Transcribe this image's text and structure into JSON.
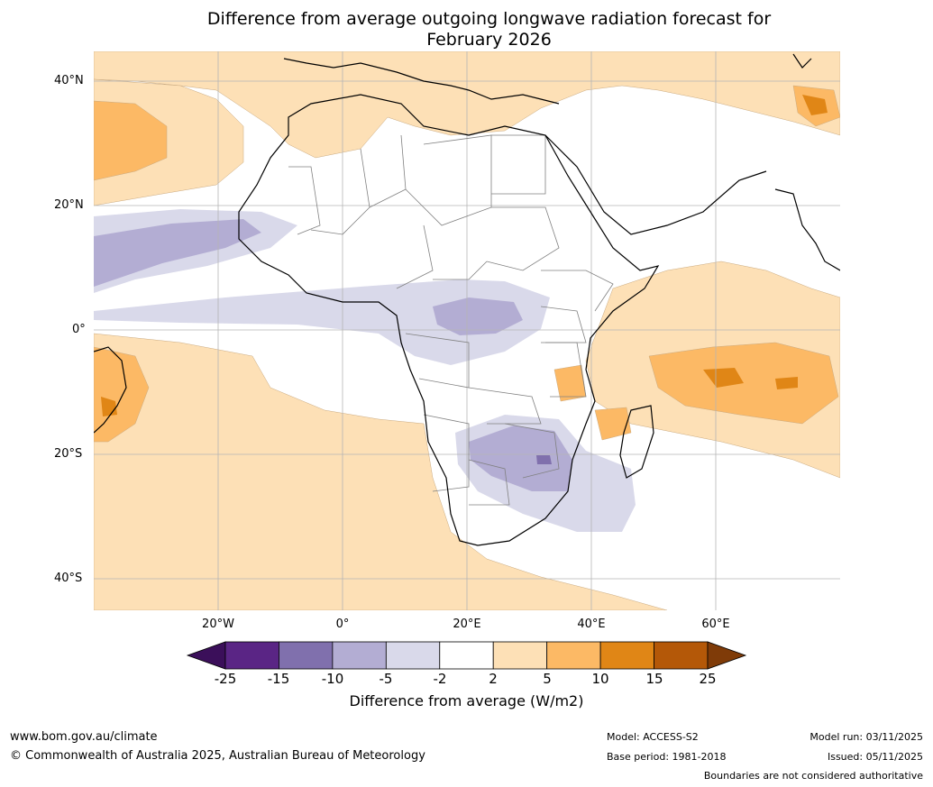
{
  "title": {
    "line1": "Difference from average outgoing longwave radiation forecast for",
    "line2": "February 2026"
  },
  "axes": {
    "lat_labels": [
      "40°N",
      "20°N",
      "0°",
      "20°S",
      "40°S"
    ],
    "lon_labels": [
      "20°W",
      "0°",
      "20°E",
      "40°E",
      "60°E"
    ]
  },
  "colorbar": {
    "ticks": [
      "-25",
      "-15",
      "-10",
      "-5",
      "-2",
      "2",
      "5",
      "10",
      "15",
      "25"
    ],
    "colors": [
      "#3b0f5a",
      "#5a2585",
      "#8070ad",
      "#b3add3",
      "#d9d9ea",
      "#ffffff",
      "#fde0b6",
      "#fcb965",
      "#e08616",
      "#b45808",
      "#7f3b08"
    ],
    "title": "Difference from average (W/m2)"
  },
  "footer": {
    "url": "www.bom.gov.au/climate",
    "copyright": "© Commonwealth of Australia 2025, Australian Bureau of Meteorology",
    "model": "Model: ACCESS-S2",
    "base_period": "Base period: 1981-2018",
    "model_run": "Model run: 03/11/2025",
    "issued": "Issued: 05/11/2025",
    "disclaimer": "Boundaries are not considered authoritative"
  }
}
